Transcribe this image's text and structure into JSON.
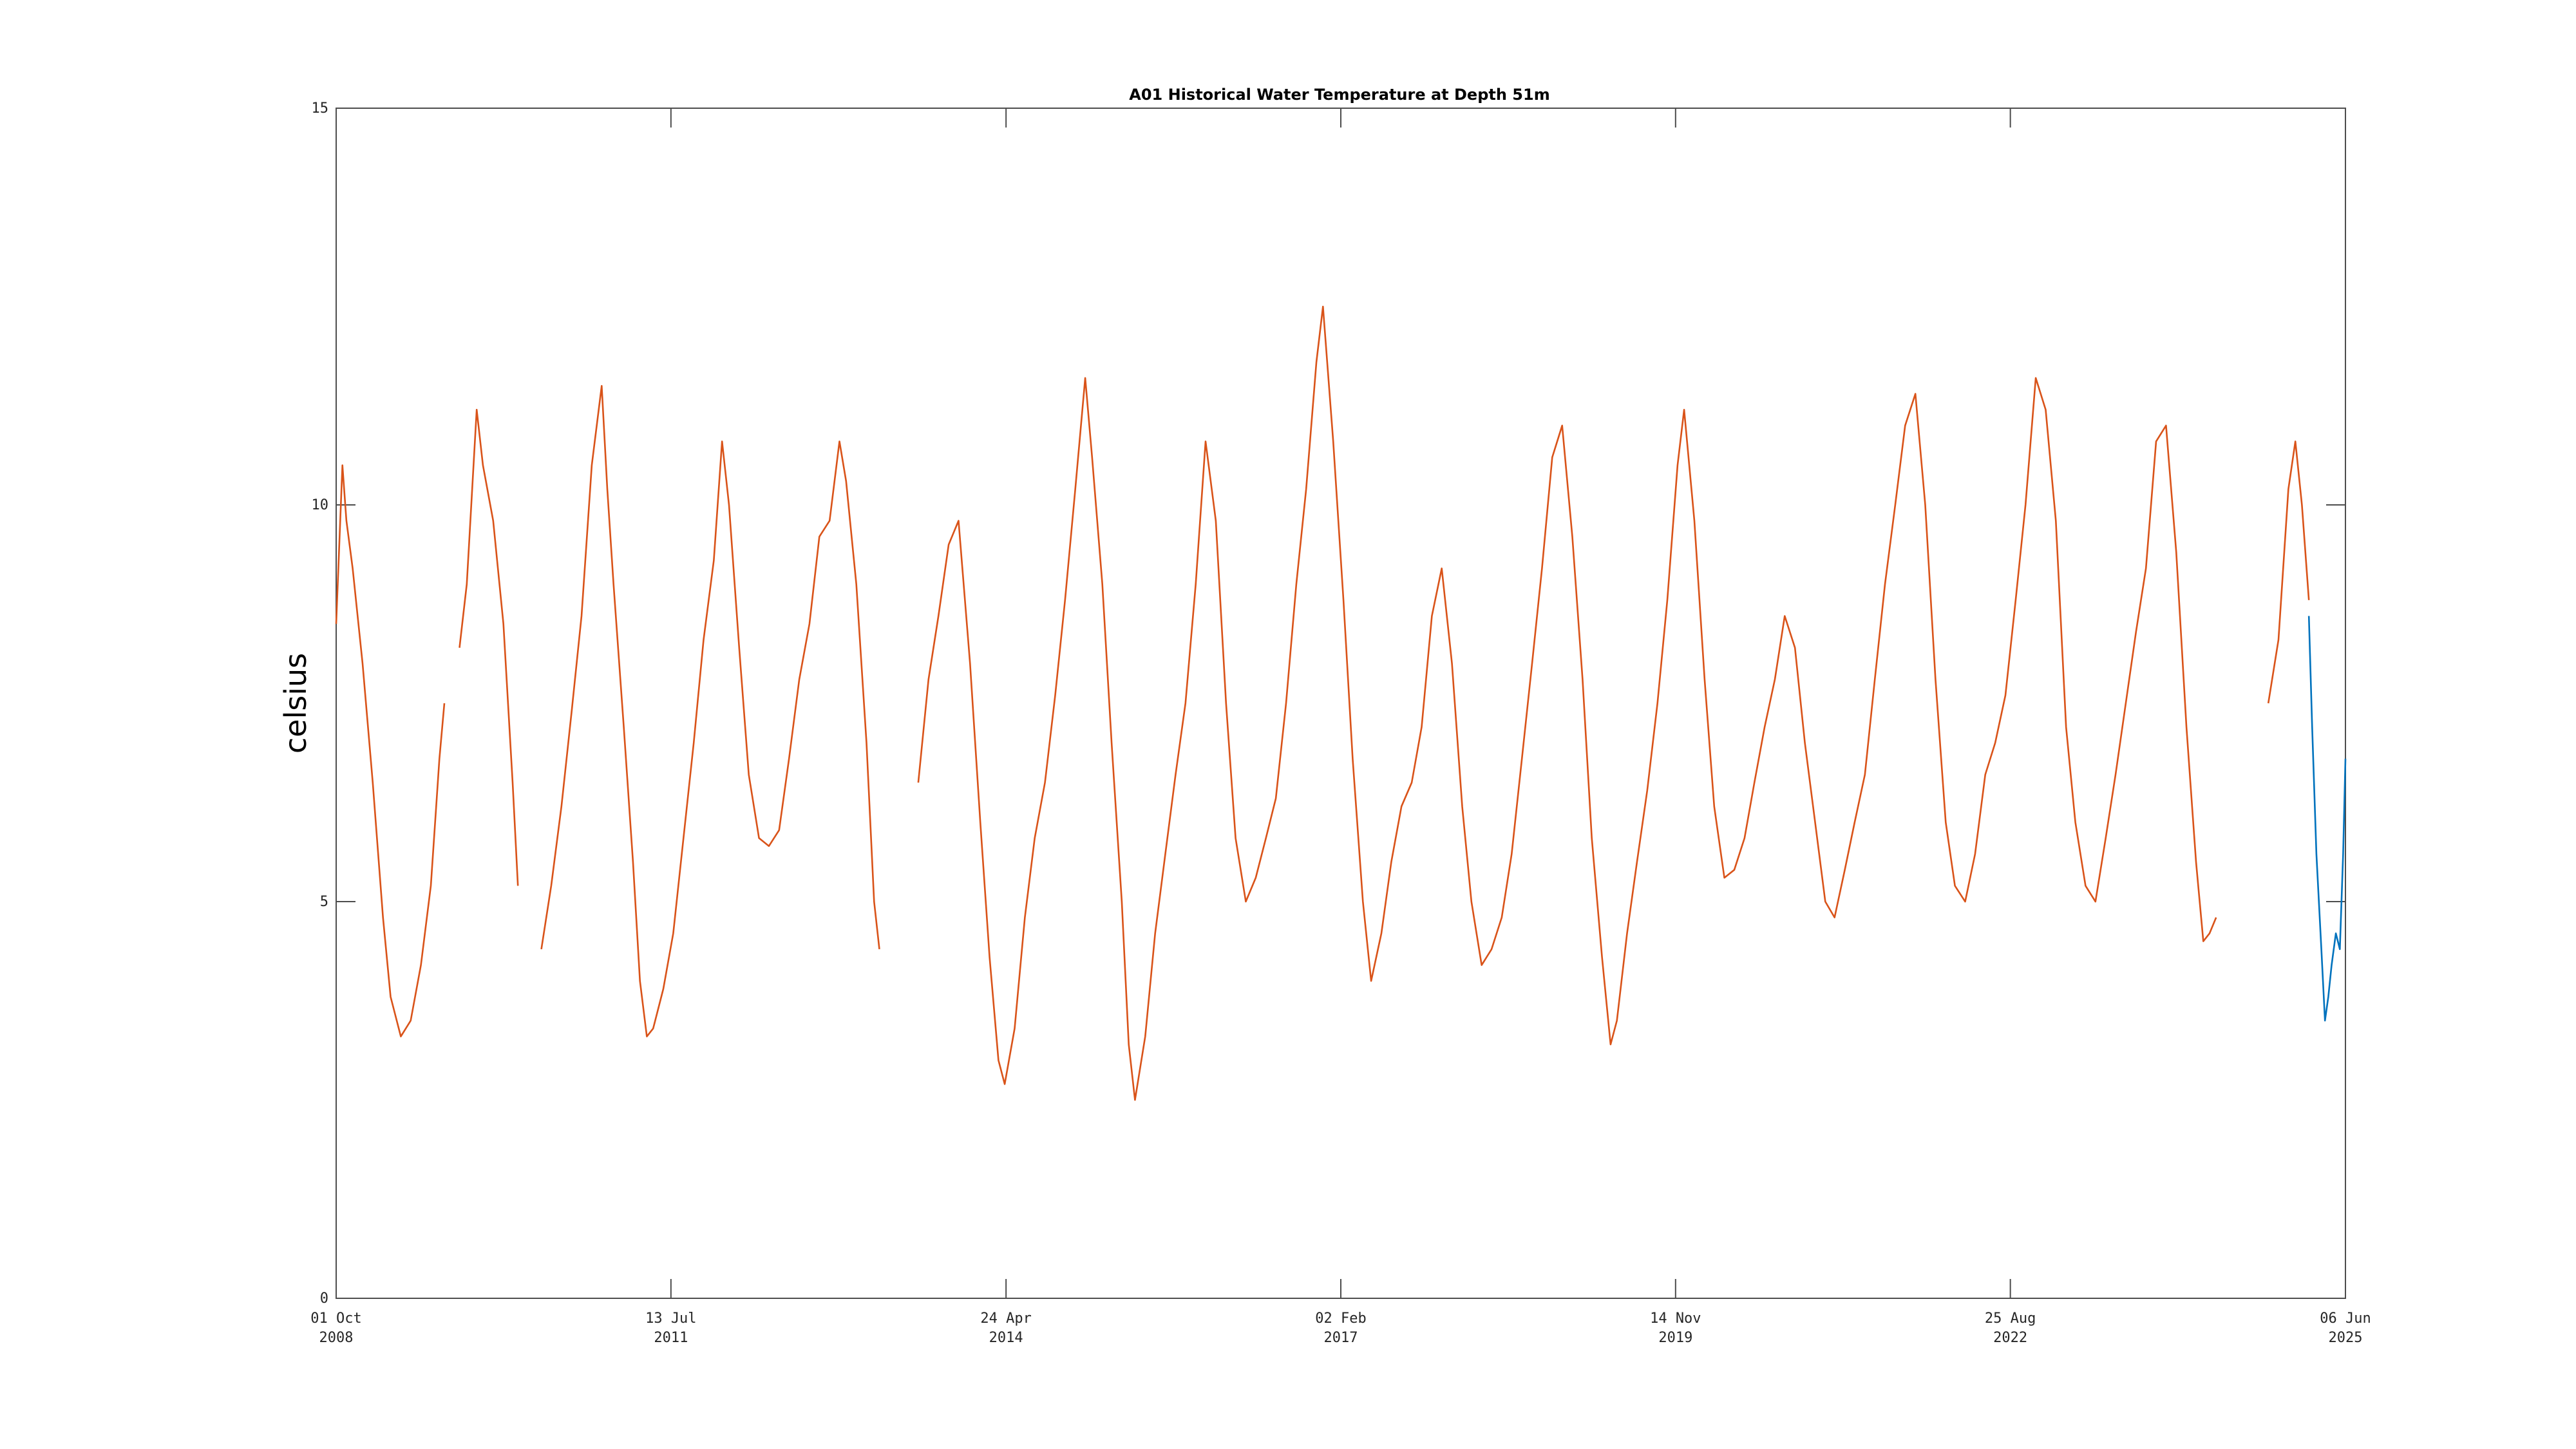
{
  "chart_data": {
    "type": "line",
    "title": "A01 Historical Water Temperature at Depth 51m",
    "xlabel": "",
    "ylabel": "celsius",
    "xlim": [
      "2008-10-01",
      "2025-06-06"
    ],
    "ylim": [
      0,
      15
    ],
    "grid": false,
    "legend": "none",
    "x_ticks": [
      {
        "date": "2008-10-01",
        "day": "01 Oct",
        "year": "2008"
      },
      {
        "date": "2011-07-13",
        "day": "13 Jul",
        "year": "2011"
      },
      {
        "date": "2014-04-24",
        "day": "24 Apr",
        "year": "2014"
      },
      {
        "date": "2017-02-02",
        "day": "02 Feb",
        "year": "2017"
      },
      {
        "date": "2019-11-14",
        "day": "14 Nov",
        "year": "2019"
      },
      {
        "date": "2022-08-25",
        "day": "25 Aug",
        "year": "2022"
      },
      {
        "date": "2025-06-06",
        "day": "06 Jun",
        "year": "2025"
      }
    ],
    "y_ticks": [
      0,
      5,
      10,
      15
    ],
    "series": [
      {
        "color": "#d95319",
        "segments": [
          [
            [
              "2008-10-01",
              8.5
            ],
            [
              "2008-10-20",
              10.5
            ],
            [
              "2008-11-01",
              9.8
            ],
            [
              "2008-11-20",
              9.2
            ],
            [
              "2008-12-20",
              8.0
            ],
            [
              "2009-01-20",
              6.5
            ],
            [
              "2009-02-20",
              4.8
            ],
            [
              "2009-03-15",
              3.8
            ],
            [
              "2009-04-15",
              3.3
            ],
            [
              "2009-05-15",
              3.5
            ],
            [
              "2009-06-15",
              4.2
            ],
            [
              "2009-07-15",
              5.2
            ],
            [
              "2009-08-10",
              6.8
            ],
            [
              "2009-08-25",
              7.5
            ]
          ],
          [
            [
              "2009-10-10",
              8.2
            ],
            [
              "2009-11-01",
              9.0
            ],
            [
              "2009-12-01",
              11.2
            ],
            [
              "2009-12-20",
              10.5
            ],
            [
              "2010-01-20",
              9.8
            ],
            [
              "2010-02-20",
              8.5
            ],
            [
              "2010-03-20",
              6.5
            ],
            [
              "2010-04-05",
              5.2
            ]
          ],
          [
            [
              "2010-06-15",
              4.4
            ],
            [
              "2010-07-15",
              5.2
            ],
            [
              "2010-08-15",
              6.2
            ],
            [
              "2010-09-15",
              7.4
            ],
            [
              "2010-10-15",
              8.6
            ],
            [
              "2010-11-15",
              10.5
            ],
            [
              "2010-12-15",
              11.5
            ],
            [
              "2011-01-01",
              10.2
            ],
            [
              "2011-01-20",
              9.0
            ],
            [
              "2011-02-20",
              7.2
            ],
            [
              "2011-03-20",
              5.5
            ],
            [
              "2011-04-10",
              4.0
            ],
            [
              "2011-05-01",
              3.3
            ],
            [
              "2011-05-20",
              3.4
            ],
            [
              "2011-06-20",
              3.9
            ],
            [
              "2011-07-20",
              4.6
            ],
            [
              "2011-08-20",
              5.8
            ],
            [
              "2011-09-20",
              7.0
            ],
            [
              "2011-10-20",
              8.3
            ],
            [
              "2011-11-20",
              9.3
            ],
            [
              "2011-12-15",
              10.8
            ],
            [
              "2012-01-05",
              10.0
            ],
            [
              "2012-02-05",
              8.2
            ],
            [
              "2012-03-05",
              6.6
            ],
            [
              "2012-04-05",
              5.8
            ],
            [
              "2012-05-05",
              5.7
            ],
            [
              "2012-06-05",
              5.9
            ],
            [
              "2012-07-05",
              6.8
            ],
            [
              "2012-08-05",
              7.8
            ],
            [
              "2012-09-05",
              8.5
            ],
            [
              "2012-10-05",
              9.6
            ],
            [
              "2012-11-05",
              9.8
            ],
            [
              "2012-12-05",
              10.8
            ],
            [
              "2012-12-25",
              10.3
            ],
            [
              "2013-01-25",
              9.0
            ],
            [
              "2013-02-25",
              7.0
            ],
            [
              "2013-03-20",
              5.0
            ],
            [
              "2013-04-05",
              4.4
            ]
          ],
          [
            [
              "2013-08-01",
              6.5
            ],
            [
              "2013-09-01",
              7.8
            ],
            [
              "2013-10-01",
              8.6
            ],
            [
              "2013-11-01",
              9.5
            ],
            [
              "2013-12-01",
              9.8
            ],
            [
              "2014-01-05",
              8.0
            ],
            [
              "2014-02-05",
              6.0
            ],
            [
              "2014-03-05",
              4.3
            ],
            [
              "2014-04-01",
              3.0
            ],
            [
              "2014-04-20",
              2.7
            ],
            [
              "2014-05-20",
              3.4
            ],
            [
              "2014-06-20",
              4.8
            ],
            [
              "2014-07-20",
              5.8
            ],
            [
              "2014-08-20",
              6.5
            ],
            [
              "2014-09-20",
              7.6
            ],
            [
              "2014-10-20",
              8.8
            ],
            [
              "2014-11-20",
              10.2
            ],
            [
              "2014-12-20",
              11.6
            ],
            [
              "2015-01-10",
              10.6
            ],
            [
              "2015-02-10",
              9.0
            ],
            [
              "2015-03-10",
              7.0
            ],
            [
              "2015-04-10",
              5.0
            ],
            [
              "2015-05-01",
              3.2
            ],
            [
              "2015-05-20",
              2.5
            ],
            [
              "2015-06-20",
              3.3
            ],
            [
              "2015-07-20",
              4.6
            ],
            [
              "2015-08-20",
              5.6
            ],
            [
              "2015-09-20",
              6.6
            ],
            [
              "2015-10-20",
              7.5
            ],
            [
              "2015-11-20",
              9.0
            ],
            [
              "2015-12-20",
              10.8
            ],
            [
              "2016-01-20",
              9.8
            ],
            [
              "2016-02-20",
              7.5
            ],
            [
              "2016-03-20",
              5.8
            ],
            [
              "2016-04-20",
              5.0
            ],
            [
              "2016-05-20",
              5.3
            ],
            [
              "2016-06-20",
              5.8
            ],
            [
              "2016-07-20",
              6.3
            ],
            [
              "2016-08-20",
              7.5
            ],
            [
              "2016-09-20",
              9.0
            ],
            [
              "2016-10-20",
              10.2
            ],
            [
              "2016-11-20",
              11.8
            ],
            [
              "2016-12-10",
              12.5
            ],
            [
              "2017-01-10",
              10.8
            ],
            [
              "2017-02-10",
              8.8
            ],
            [
              "2017-03-10",
              6.8
            ],
            [
              "2017-04-10",
              5.0
            ],
            [
              "2017-05-05",
              4.0
            ],
            [
              "2017-06-05",
              4.6
            ],
            [
              "2017-07-05",
              5.5
            ],
            [
              "2017-08-05",
              6.2
            ],
            [
              "2017-09-05",
              6.5
            ],
            [
              "2017-10-05",
              7.2
            ],
            [
              "2017-11-05",
              8.6
            ],
            [
              "2017-12-05",
              9.2
            ],
            [
              "2018-01-05",
              8.0
            ],
            [
              "2018-02-05",
              6.2
            ],
            [
              "2018-03-05",
              5.0
            ],
            [
              "2018-04-05",
              4.2
            ],
            [
              "2018-05-05",
              4.4
            ],
            [
              "2018-06-05",
              4.8
            ],
            [
              "2018-07-05",
              5.6
            ],
            [
              "2018-08-05",
              6.8
            ],
            [
              "2018-09-05",
              8.0
            ],
            [
              "2018-10-05",
              9.2
            ],
            [
              "2018-11-05",
              10.6
            ],
            [
              "2018-12-05",
              11.0
            ],
            [
              "2019-01-05",
              9.6
            ],
            [
              "2019-02-05",
              7.8
            ],
            [
              "2019-03-05",
              5.8
            ],
            [
              "2019-04-05",
              4.3
            ],
            [
              "2019-05-01",
              3.2
            ],
            [
              "2019-05-20",
              3.5
            ],
            [
              "2019-06-20",
              4.6
            ],
            [
              "2019-07-20",
              5.5
            ],
            [
              "2019-08-20",
              6.4
            ],
            [
              "2019-09-20",
              7.5
            ],
            [
              "2019-10-20",
              8.8
            ],
            [
              "2019-11-20",
              10.5
            ],
            [
              "2019-12-10",
              11.2
            ],
            [
              "2020-01-10",
              9.8
            ],
            [
              "2020-02-10",
              7.8
            ],
            [
              "2020-03-10",
              6.2
            ],
            [
              "2020-04-10",
              5.3
            ],
            [
              "2020-05-10",
              5.4
            ],
            [
              "2020-06-10",
              5.8
            ],
            [
              "2020-07-10",
              6.5
            ],
            [
              "2020-08-10",
              7.2
            ],
            [
              "2020-09-10",
              7.8
            ],
            [
              "2020-10-10",
              8.6
            ],
            [
              "2020-11-10",
              8.2
            ],
            [
              "2020-12-10",
              7.0
            ],
            [
              "2021-01-10",
              6.0
            ],
            [
              "2021-02-10",
              5.0
            ],
            [
              "2021-03-10",
              4.8
            ],
            [
              "2021-04-10",
              5.4
            ],
            [
              "2021-05-10",
              6.0
            ],
            [
              "2021-06-10",
              6.6
            ],
            [
              "2021-07-10",
              7.8
            ],
            [
              "2021-08-10",
              9.0
            ],
            [
              "2021-09-10",
              10.0
            ],
            [
              "2021-10-10",
              11.0
            ],
            [
              "2021-11-10",
              11.4
            ],
            [
              "2021-12-10",
              10.0
            ],
            [
              "2022-01-10",
              7.8
            ],
            [
              "2022-02-10",
              6.0
            ],
            [
              "2022-03-10",
              5.2
            ],
            [
              "2022-04-10",
              5.0
            ],
            [
              "2022-05-10",
              5.6
            ],
            [
              "2022-06-10",
              6.6
            ],
            [
              "2022-07-10",
              7.0
            ],
            [
              "2022-08-10",
              7.6
            ],
            [
              "2022-09-10",
              8.8
            ],
            [
              "2022-10-10",
              10.0
            ],
            [
              "2022-11-10",
              11.6
            ],
            [
              "2022-12-10",
              11.2
            ],
            [
              "2023-01-10",
              9.8
            ],
            [
              "2023-02-10",
              7.2
            ],
            [
              "2023-03-10",
              6.0
            ],
            [
              "2023-04-10",
              5.2
            ],
            [
              "2023-05-10",
              5.0
            ],
            [
              "2023-06-10",
              5.8
            ],
            [
              "2023-07-10",
              6.6
            ],
            [
              "2023-08-10",
              7.5
            ],
            [
              "2023-09-10",
              8.4
            ],
            [
              "2023-10-10",
              9.2
            ],
            [
              "2023-11-10",
              10.8
            ],
            [
              "2023-12-10",
              11.0
            ],
            [
              "2024-01-10",
              9.4
            ],
            [
              "2024-02-10",
              7.2
            ],
            [
              "2024-03-10",
              5.5
            ],
            [
              "2024-04-01",
              4.5
            ],
            [
              "2024-04-20",
              4.6
            ],
            [
              "2024-05-10",
              4.8
            ]
          ],
          [
            [
              "2024-10-15",
              7.5
            ],
            [
              "2024-11-15",
              8.3
            ],
            [
              "2024-12-15",
              10.2
            ],
            [
              "2025-01-05",
              10.8
            ],
            [
              "2025-01-25",
              10.0
            ],
            [
              "2025-02-15",
              8.8
            ]
          ]
        ]
      },
      {
        "color": "#0072bd",
        "segments": [
          [
            [
              "2025-02-15",
              8.6
            ],
            [
              "2025-02-25",
              7.2
            ],
            [
              "2025-03-10",
              5.6
            ],
            [
              "2025-03-25",
              4.4
            ],
            [
              "2025-04-05",
              3.5
            ],
            [
              "2025-04-15",
              3.8
            ],
            [
              "2025-04-25",
              4.2
            ],
            [
              "2025-05-08",
              4.6
            ],
            [
              "2025-05-20",
              4.4
            ],
            [
              "2025-05-30",
              5.6
            ],
            [
              "2025-06-06",
              6.8
            ]
          ]
        ]
      }
    ]
  }
}
